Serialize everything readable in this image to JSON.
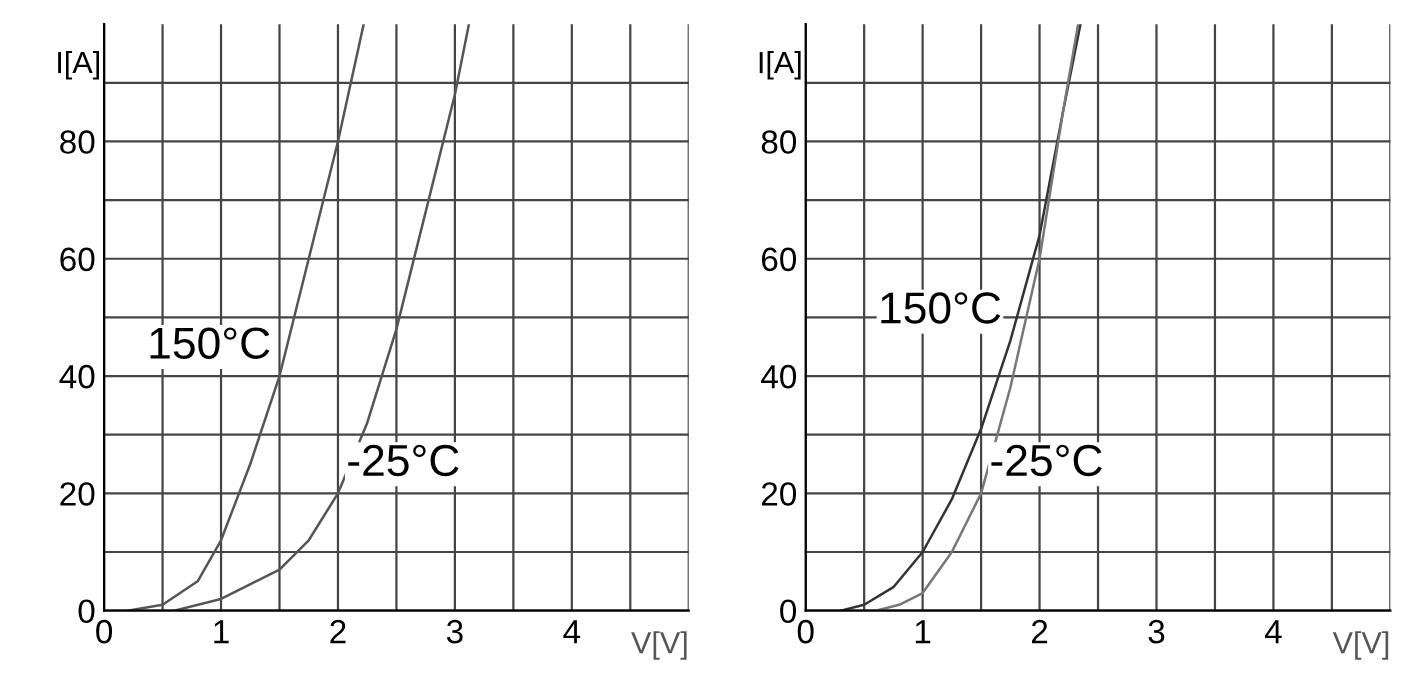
{
  "chart_data": [
    {
      "type": "line",
      "xlabel": "V[V]",
      "ylabel": "I[A]",
      "xlim": [
        0,
        5
      ],
      "ylim": [
        0,
        100
      ],
      "xticks": [
        0,
        {
          "value": 0.5,
          "label": null
        },
        1,
        {
          "value": 1.5,
          "label": null
        },
        2,
        {
          "value": 2.5,
          "label": null
        },
        3,
        {
          "value": 3.5,
          "label": null
        },
        4,
        {
          "value": 4.5,
          "label": null
        },
        {
          "value": 5,
          "label": null
        }
      ],
      "yticks": [
        0,
        {
          "value": 10,
          "label": null
        },
        20,
        {
          "value": 30,
          "label": null
        },
        40,
        {
          "value": 50,
          "label": null
        },
        60,
        {
          "value": 70,
          "label": null
        },
        80,
        {
          "value": 90,
          "label": null
        }
      ],
      "grid": true,
      "marker": "none",
      "line_style": "solid",
      "series": [
        {
          "name": "150°C",
          "color": "#555555",
          "x": [
            0.2,
            0.5,
            0.8,
            1,
            1.25,
            1.5,
            1.75,
            2,
            2.22
          ],
          "values": [
            0,
            1,
            5,
            12,
            25,
            40,
            60,
            80,
            100
          ]
        },
        {
          "name": "-25°C",
          "color": "#555555",
          "x": [
            0.6,
            1,
            1.5,
            1.75,
            2,
            2.25,
            2.5,
            2.75,
            3,
            3.12
          ],
          "values": [
            0,
            2,
            7,
            12,
            20,
            32,
            48,
            68,
            88,
            100
          ]
        }
      ]
    },
    {
      "type": "line",
      "xlabel": "V[V]",
      "ylabel": "I[A]",
      "xlim": [
        0,
        5
      ],
      "ylim": [
        0,
        100
      ],
      "xticks": [
        0,
        {
          "value": 0.5,
          "label": null
        },
        1,
        {
          "value": 1.5,
          "label": null
        },
        2,
        {
          "value": 2.5,
          "label": null
        },
        3,
        {
          "value": 3.5,
          "label": null
        },
        4,
        {
          "value": 4.5,
          "label": null
        },
        {
          "value": 5,
          "label": null
        }
      ],
      "yticks": [
        0,
        {
          "value": 10,
          "label": null
        },
        20,
        {
          "value": 30,
          "label": null
        },
        40,
        {
          "value": 50,
          "label": null
        },
        60,
        {
          "value": 70,
          "label": null
        },
        80,
        {
          "value": 90,
          "label": null
        }
      ],
      "grid": true,
      "marker": "none",
      "line_style": "solid",
      "series": [
        {
          "name": "150°C",
          "color": "#333333",
          "x": [
            0.3,
            0.5,
            0.75,
            1,
            1.25,
            1.5,
            1.75,
            2,
            2.2,
            2.35
          ],
          "values": [
            0,
            1,
            4,
            10,
            19,
            31,
            46,
            64,
            85,
            100
          ]
        },
        {
          "name": "-25°C",
          "color": "#777777",
          "x": [
            0.6,
            0.8,
            1,
            1.25,
            1.5,
            1.75,
            2,
            2.2,
            2.33
          ],
          "values": [
            0,
            1,
            3,
            10,
            20,
            38,
            60,
            85,
            100
          ]
        }
      ]
    }
  ]
}
